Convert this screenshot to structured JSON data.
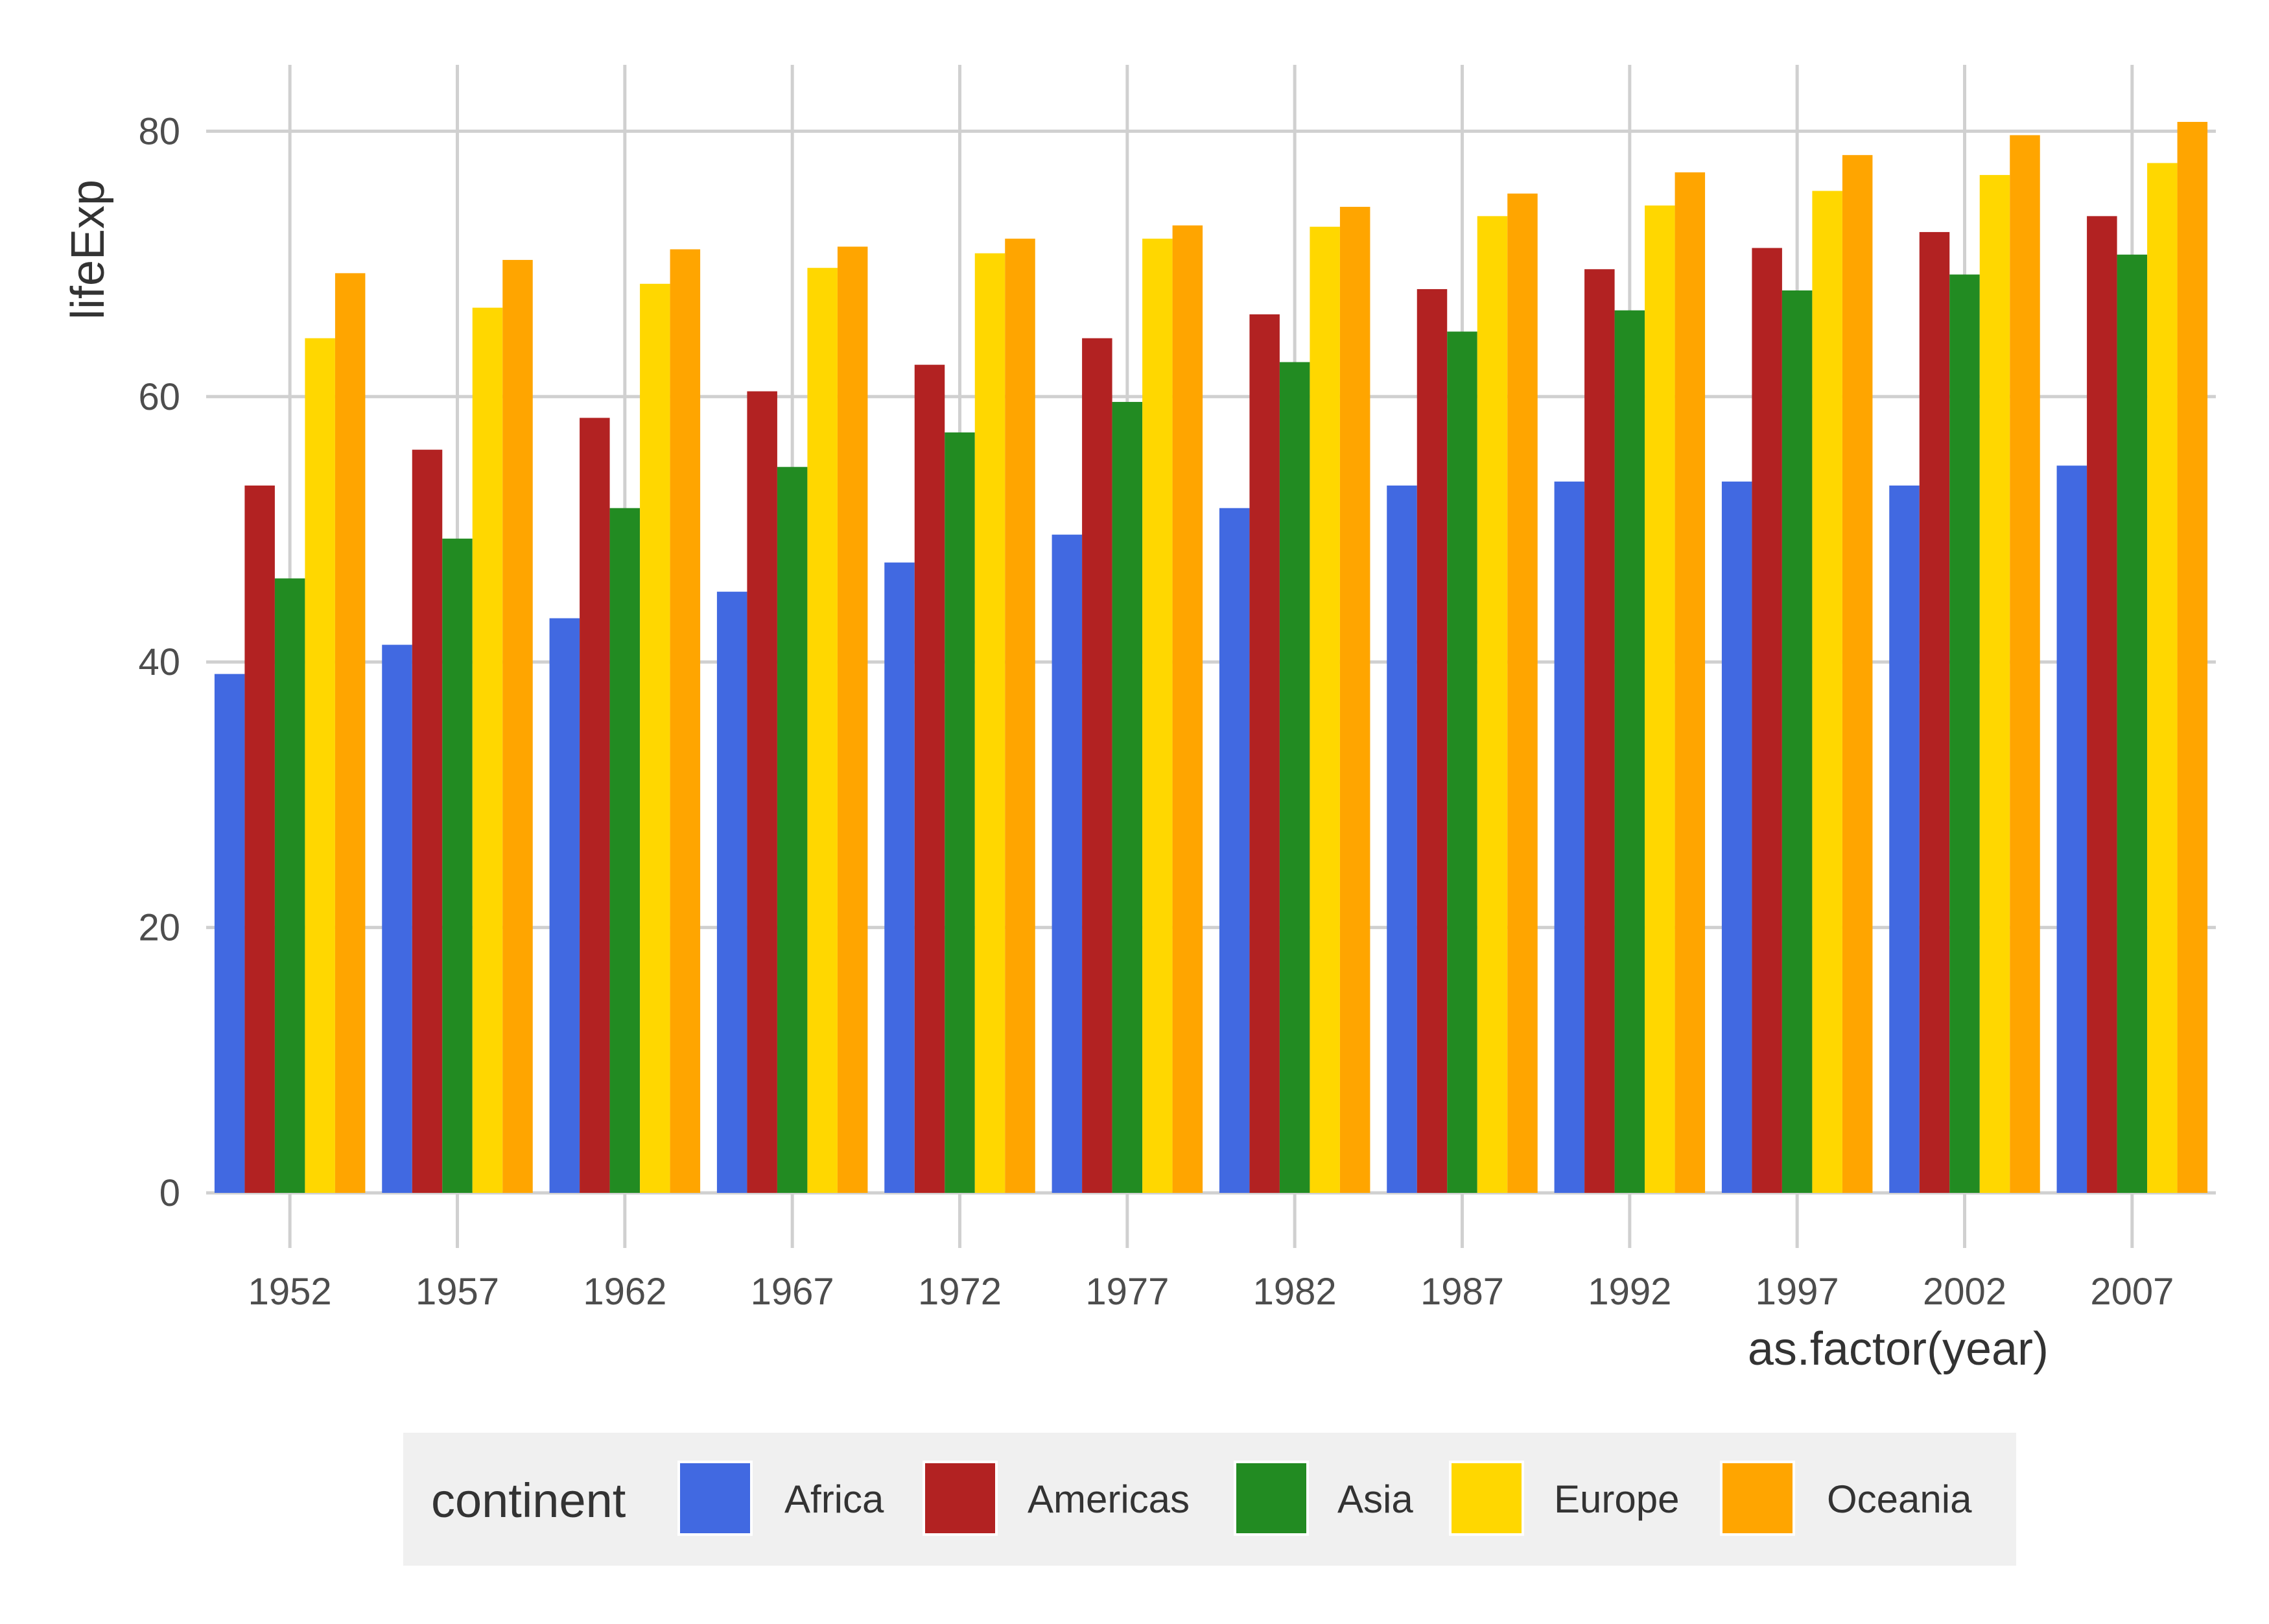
{
  "chart_data": {
    "type": "bar",
    "xlabel": "as.factor(year)",
    "ylabel": "lifeExp",
    "categories": [
      "1952",
      "1957",
      "1962",
      "1967",
      "1972",
      "1977",
      "1982",
      "1987",
      "1992",
      "1997",
      "2002",
      "2007"
    ],
    "ylim": [
      0,
      85
    ],
    "yticks": [
      "0",
      "20",
      "40",
      "60",
      "80"
    ],
    "grid": true,
    "legend_position": "bottom",
    "legend": {
      "title": "continent"
    },
    "series": [
      {
        "name": "Africa",
        "color": "#4169E1",
        "values": [
          39.1,
          41.3,
          43.3,
          45.3,
          47.5,
          49.6,
          51.6,
          53.3,
          53.6,
          53.6,
          53.3,
          54.8
        ]
      },
      {
        "name": "Americas",
        "color": "#B22222",
        "values": [
          53.3,
          56.0,
          58.4,
          60.4,
          62.4,
          64.4,
          66.2,
          68.1,
          69.6,
          71.2,
          72.4,
          73.6
        ]
      },
      {
        "name": "Asia",
        "color": "#228B22",
        "values": [
          46.3,
          49.3,
          51.6,
          54.7,
          57.3,
          59.6,
          62.6,
          64.9,
          66.5,
          68.0,
          69.2,
          70.7
        ]
      },
      {
        "name": "Europe",
        "color": "#FFD700",
        "values": [
          64.4,
          66.7,
          68.5,
          69.7,
          70.8,
          71.9,
          72.8,
          73.6,
          74.4,
          75.5,
          76.7,
          77.6
        ]
      },
      {
        "name": "Oceania",
        "color": "#FFA500",
        "values": [
          69.3,
          70.3,
          71.1,
          71.3,
          71.9,
          72.9,
          74.3,
          75.3,
          76.9,
          78.2,
          79.7,
          80.7
        ]
      }
    ]
  }
}
